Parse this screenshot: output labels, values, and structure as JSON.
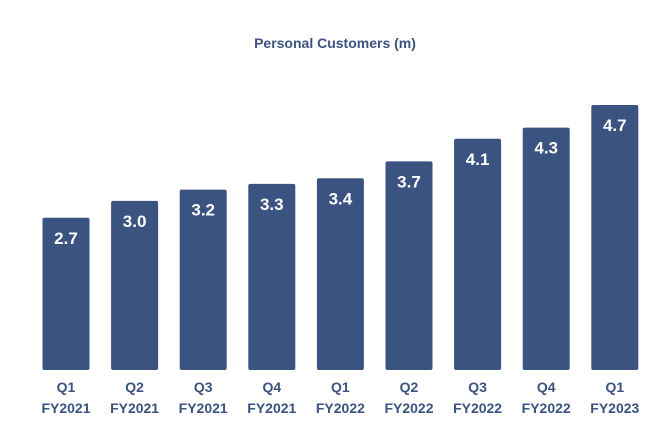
{
  "colors": {
    "bar": "#3b5380",
    "title": "#3b5380",
    "tick_text": "#3b5380",
    "value_text": "#ffffff",
    "background": "#ffffff"
  },
  "chart_data": {
    "type": "bar",
    "title": "Personal Customers (m)",
    "xlabel": "",
    "ylabel": "",
    "ylim": [
      0,
      4.7
    ],
    "grid": false,
    "legend": "none",
    "categories": [
      [
        "Q1",
        "FY2021"
      ],
      [
        "Q2",
        "FY2021"
      ],
      [
        "Q3",
        "FY2021"
      ],
      [
        "Q4",
        "FY2021"
      ],
      [
        "Q1",
        "FY2022"
      ],
      [
        "Q2",
        "FY2022"
      ],
      [
        "Q3",
        "FY2022"
      ],
      [
        "Q4",
        "FY2022"
      ],
      [
        "Q1",
        "FY2023"
      ]
    ],
    "values": [
      2.7,
      3.0,
      3.2,
      3.3,
      3.4,
      3.7,
      4.1,
      4.3,
      4.7
    ],
    "value_labels": [
      "2.7",
      "3.0",
      "3.2",
      "3.3",
      "3.4",
      "3.7",
      "4.1",
      "4.3",
      "4.7"
    ]
  }
}
